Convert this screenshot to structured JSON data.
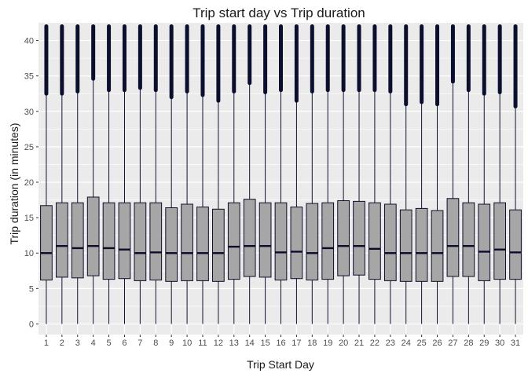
{
  "chart_data": {
    "type": "box",
    "title": "Trip start day vs Trip duration",
    "xlabel": "Trip Start Day",
    "ylabel": "Trip duration (in minutes)",
    "ylim": [
      -1.5,
      42.5
    ],
    "yticks": [
      0,
      5,
      10,
      15,
      20,
      25,
      30,
      35,
      40
    ],
    "grid": true,
    "colors": {
      "panel": "#EBEBEB",
      "grid": "#FFFFFF",
      "box_fill": "#A6A6A6",
      "line": "#0D0D2B",
      "outlier": "#0B0F2E",
      "tick_text": "#4D4D4D"
    },
    "categories": [
      "1",
      "2",
      "3",
      "4",
      "5",
      "6",
      "7",
      "8",
      "9",
      "10",
      "11",
      "12",
      "13",
      "14",
      "15",
      "16",
      "17",
      "18",
      "19",
      "20",
      "21",
      "22",
      "23",
      "24",
      "25",
      "26",
      "27",
      "28",
      "29",
      "30",
      "31"
    ],
    "boxes": [
      {
        "q1": 6.2,
        "median": 10.0,
        "q3": 16.7,
        "whisker_low": 0,
        "whisker_high": 32.5,
        "outlier_max": 42
      },
      {
        "q1": 6.6,
        "median": 11.0,
        "q3": 17.1,
        "whisker_low": 0,
        "whisker_high": 32.5,
        "outlier_max": 42
      },
      {
        "q1": 6.5,
        "median": 10.7,
        "q3": 17.1,
        "whisker_low": 0,
        "whisker_high": 32.8,
        "outlier_max": 42
      },
      {
        "q1": 6.8,
        "median": 11.0,
        "q3": 17.9,
        "whisker_low": 0,
        "whisker_high": 34.6,
        "outlier_max": 42
      },
      {
        "q1": 6.3,
        "median": 10.7,
        "q3": 17.1,
        "whisker_low": 0,
        "whisker_high": 33.0,
        "outlier_max": 42
      },
      {
        "q1": 6.4,
        "median": 10.5,
        "q3": 17.1,
        "whisker_low": 0,
        "whisker_high": 33.0,
        "outlier_max": 42
      },
      {
        "q1": 6.1,
        "median": 10.0,
        "q3": 17.1,
        "whisker_low": 0,
        "whisker_high": 33.3,
        "outlier_max": 42
      },
      {
        "q1": 6.2,
        "median": 10.1,
        "q3": 17.1,
        "whisker_low": 0,
        "whisker_high": 33.0,
        "outlier_max": 42
      },
      {
        "q1": 6.0,
        "median": 10.0,
        "q3": 16.4,
        "whisker_low": 0,
        "whisker_high": 32.0,
        "outlier_max": 42
      },
      {
        "q1": 6.1,
        "median": 10.0,
        "q3": 16.9,
        "whisker_low": 0,
        "whisker_high": 32.8,
        "outlier_max": 42
      },
      {
        "q1": 6.1,
        "median": 10.0,
        "q3": 16.5,
        "whisker_low": 0,
        "whisker_high": 32.3,
        "outlier_max": 42
      },
      {
        "q1": 6.0,
        "median": 10.0,
        "q3": 16.2,
        "whisker_low": 0,
        "whisker_high": 31.5,
        "outlier_max": 42
      },
      {
        "q1": 6.3,
        "median": 10.9,
        "q3": 17.1,
        "whisker_low": 0,
        "whisker_high": 32.8,
        "outlier_max": 42
      },
      {
        "q1": 6.7,
        "median": 11.0,
        "q3": 17.6,
        "whisker_low": 0,
        "whisker_high": 34.0,
        "outlier_max": 42
      },
      {
        "q1": 6.6,
        "median": 11.0,
        "q3": 17.1,
        "whisker_low": 0,
        "whisker_high": 32.7,
        "outlier_max": 42
      },
      {
        "q1": 6.2,
        "median": 10.1,
        "q3": 17.1,
        "whisker_low": 0,
        "whisker_high": 33.0,
        "outlier_max": 42
      },
      {
        "q1": 6.4,
        "median": 10.2,
        "q3": 16.5,
        "whisker_low": 0,
        "whisker_high": 31.5,
        "outlier_max": 42
      },
      {
        "q1": 6.2,
        "median": 10.0,
        "q3": 17.0,
        "whisker_low": 0,
        "whisker_high": 32.8,
        "outlier_max": 42
      },
      {
        "q1": 6.3,
        "median": 10.7,
        "q3": 17.1,
        "whisker_low": 0,
        "whisker_high": 33.0,
        "outlier_max": 42
      },
      {
        "q1": 6.8,
        "median": 11.0,
        "q3": 17.4,
        "whisker_low": 0,
        "whisker_high": 33.0,
        "outlier_max": 42
      },
      {
        "q1": 6.9,
        "median": 11.0,
        "q3": 17.3,
        "whisker_low": 0,
        "whisker_high": 33.0,
        "outlier_max": 42
      },
      {
        "q1": 6.3,
        "median": 10.6,
        "q3": 17.1,
        "whisker_low": 0,
        "whisker_high": 33.0,
        "outlier_max": 42
      },
      {
        "q1": 6.1,
        "median": 10.0,
        "q3": 16.9,
        "whisker_low": 0,
        "whisker_high": 32.8,
        "outlier_max": 42
      },
      {
        "q1": 6.0,
        "median": 10.0,
        "q3": 16.1,
        "whisker_low": 0,
        "whisker_high": 31.0,
        "outlier_max": 42
      },
      {
        "q1": 6.0,
        "median": 10.0,
        "q3": 16.3,
        "whisker_low": 0,
        "whisker_high": 31.3,
        "outlier_max": 42
      },
      {
        "q1": 6.0,
        "median": 10.0,
        "q3": 16.0,
        "whisker_low": 0,
        "whisker_high": 31.0,
        "outlier_max": 42
      },
      {
        "q1": 6.7,
        "median": 11.0,
        "q3": 17.7,
        "whisker_low": 0,
        "whisker_high": 34.2,
        "outlier_max": 42
      },
      {
        "q1": 6.7,
        "median": 11.0,
        "q3": 17.1,
        "whisker_low": 0,
        "whisker_high": 33.0,
        "outlier_max": 42
      },
      {
        "q1": 6.1,
        "median": 10.2,
        "q3": 16.9,
        "whisker_low": 0,
        "whisker_high": 32.5,
        "outlier_max": 42
      },
      {
        "q1": 6.3,
        "median": 10.5,
        "q3": 17.1,
        "whisker_low": 0,
        "whisker_high": 32.7,
        "outlier_max": 42
      },
      {
        "q1": 6.3,
        "median": 10.1,
        "q3": 16.1,
        "whisker_low": 0,
        "whisker_high": 30.7,
        "outlier_max": 42
      }
    ]
  }
}
